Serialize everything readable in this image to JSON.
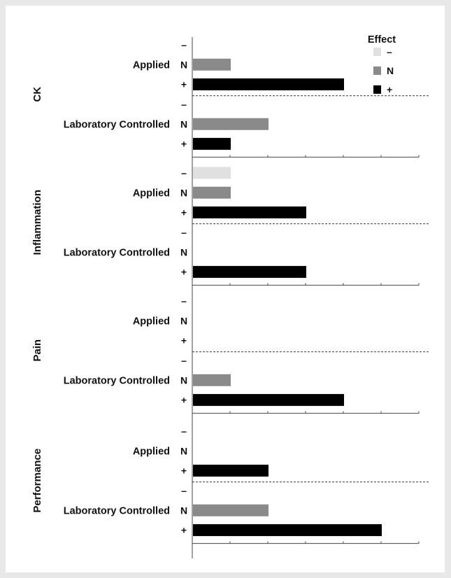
{
  "chart_data": {
    "type": "bar",
    "orientation": "horizontal",
    "title": "",
    "xlabel": "",
    "ylabel": "",
    "x_ticks": 6,
    "legend": {
      "title": "Effect",
      "position": "top-right",
      "entries": [
        {
          "label": "–",
          "color": "#e0e0e0"
        },
        {
          "label": "N",
          "color": "#8a8a8a"
        },
        {
          "label": "+",
          "color": "#000000"
        }
      ]
    },
    "groups": [
      {
        "name": "CK",
        "subgroups": [
          {
            "name": "Applied",
            "values": {
              "minus": 0,
              "N": 1,
              "plus": 4
            }
          },
          {
            "name": "Laboratory Controlled",
            "values": {
              "minus": 0,
              "N": 2,
              "plus": 1
            }
          }
        ]
      },
      {
        "name": "Inflammation",
        "subgroups": [
          {
            "name": "Applied",
            "values": {
              "minus": 1,
              "N": 1,
              "plus": 3
            }
          },
          {
            "name": "Laboratory Controlled",
            "values": {
              "minus": 0,
              "N": 0,
              "plus": 3
            }
          }
        ]
      },
      {
        "name": "Pain",
        "subgroups": [
          {
            "name": "Applied",
            "values": {
              "minus": 0,
              "N": 0,
              "plus": 0
            }
          },
          {
            "name": "Laboratory Controlled",
            "values": {
              "minus": 0,
              "N": 1,
              "plus": 4
            }
          }
        ]
      },
      {
        "name": "Performance",
        "subgroups": [
          {
            "name": "Applied",
            "values": {
              "minus": 0,
              "N": 0,
              "plus": 2
            }
          },
          {
            "name": "Laboratory Controlled",
            "values": {
              "minus": 0,
              "N": 2,
              "plus": 5
            }
          }
        ]
      }
    ],
    "level_labels": [
      "–",
      "N",
      "+"
    ],
    "colors": {
      "minus": "#e0e0e0",
      "N": "#8a8a8a",
      "plus": "#000000"
    }
  }
}
